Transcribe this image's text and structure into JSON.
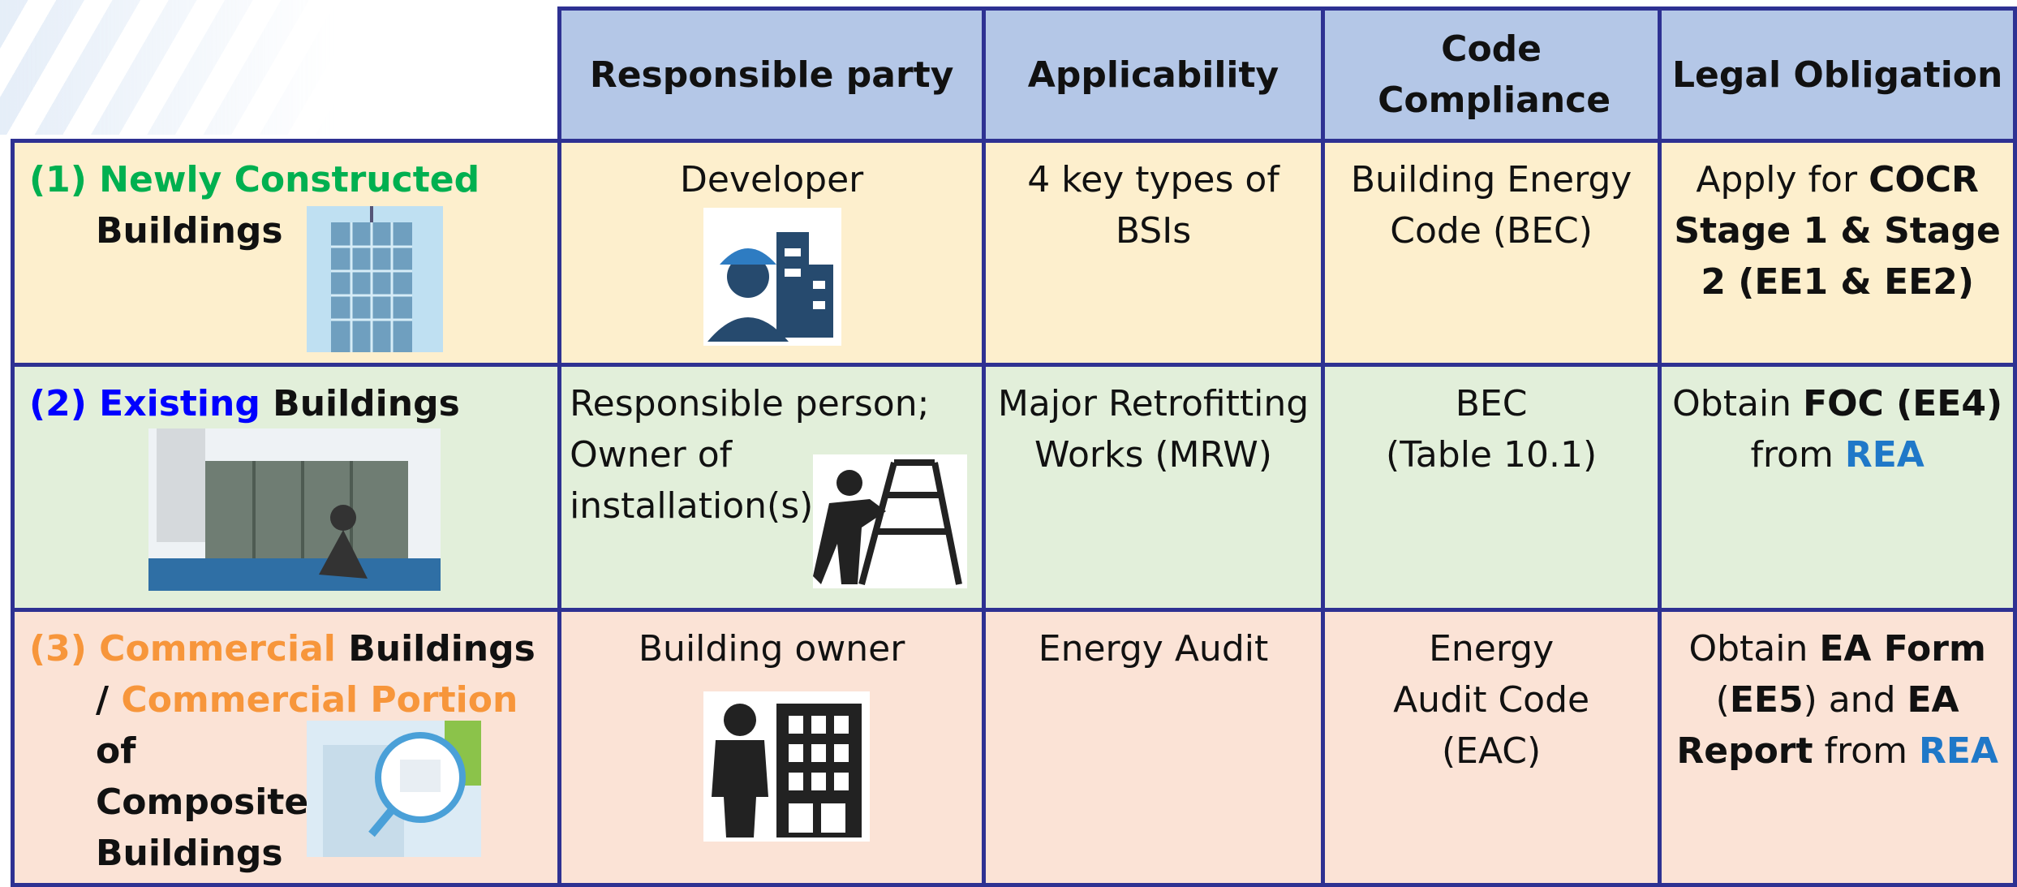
{
  "header": {
    "columns": [
      "Responsible party",
      "Applicability",
      "Code Compliance",
      "Legal Obligation"
    ]
  },
  "rows": [
    {
      "category": [
        "(1)",
        "Newly Constructed",
        "Buildings"
      ],
      "responsible_party": [
        "Developer"
      ],
      "applicability": "4 key types of BSIs",
      "code_compliance": [
        "Building Energy Code (BEC)"
      ],
      "legal_obligation": [
        "Apply for",
        "COCR Stage 1 & Stage 2 (EE1 & EE2)"
      ]
    },
    {
      "category": [
        "(2)",
        "Existing",
        "Buildings"
      ],
      "responsible_party": [
        "Responsible person;",
        "Owner of installation(s)"
      ],
      "applicability": "Major Retrofitting Works (MRW)",
      "code_compliance": [
        "BEC",
        "(Table 10.1)"
      ],
      "legal_obligation": [
        "Obtain",
        "FOC (EE4)",
        "from",
        "REA"
      ]
    },
    {
      "category": [
        "(3)",
        "Commercial",
        "Buildings /",
        "Commercial Portion",
        "of",
        "Composite Buildings"
      ],
      "responsible_party": [
        "Building owner"
      ],
      "applicability": "Energy Audit",
      "code_compliance": [
        "Energy Audit Code",
        "(EAC)"
      ],
      "legal_obligation": [
        "Obtain",
        "EA Form",
        "(",
        "EE5",
        ") and",
        "EA Report",
        "from",
        "REA"
      ]
    }
  ]
}
